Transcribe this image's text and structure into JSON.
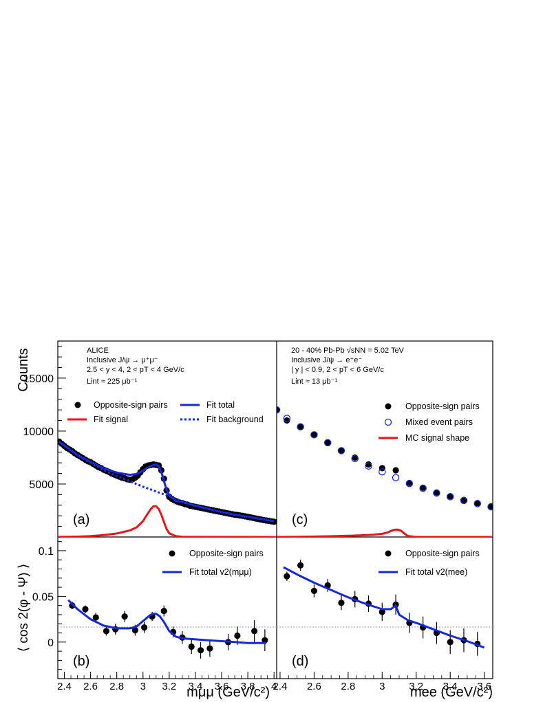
{
  "chart_data": [
    {
      "panel": "(a)",
      "type": "scatter",
      "xlim": [
        2.35,
        4.02
      ],
      "ylim": [
        0,
        18500
      ],
      "ylabel": "Counts",
      "yticks": [
        5000,
        10000,
        15000
      ],
      "annotations": [
        "ALICE",
        "Inclusive J/ψ → μ⁺μ⁻",
        "2.5 < y < 4,  2 < pT < 4 GeV/c",
        "Lint ≈ 225 μb⁻¹"
      ],
      "legend": [
        "Opposite-sign pairs",
        "Fit total",
        "Fit signal",
        "Fit background"
      ],
      "series": [
        {
          "name": "Opposite-sign pairs",
          "style": "marker-filled",
          "color": "#000000",
          "x": [
            2.36,
            2.38,
            2.4,
            2.42,
            2.44,
            2.46,
            2.48,
            2.5,
            2.52,
            2.54,
            2.56,
            2.58,
            2.6,
            2.62,
            2.64,
            2.66,
            2.68,
            2.7,
            2.72,
            2.74,
            2.76,
            2.78,
            2.8,
            2.82,
            2.84,
            2.86,
            2.88,
            2.9,
            2.92,
            2.94,
            2.96,
            2.98,
            3.0,
            3.02,
            3.04,
            3.06,
            3.08,
            3.1,
            3.12,
            3.14,
            3.16,
            3.18,
            3.2,
            3.22,
            3.24,
            3.26,
            3.28,
            3.3,
            3.32,
            3.34,
            3.36,
            3.38,
            3.4,
            3.42,
            3.44,
            3.46,
            3.48,
            3.5,
            3.52,
            3.54,
            3.56,
            3.58,
            3.6,
            3.62,
            3.64,
            3.66,
            3.68,
            3.7,
            3.72,
            3.74,
            3.76,
            3.78,
            3.8,
            3.82,
            3.84,
            3.86,
            3.88,
            3.9,
            3.92,
            3.94,
            3.96,
            3.98,
            4.0
          ],
          "y": [
            9000,
            8800,
            8600,
            8400,
            8250,
            8100,
            7900,
            7750,
            7600,
            7450,
            7300,
            7150,
            7050,
            6900,
            6750,
            6600,
            6500,
            6350,
            6250,
            6150,
            6000,
            5900,
            5800,
            5700,
            5600,
            5550,
            5450,
            5400,
            5450,
            5600,
            5800,
            6100,
            6400,
            6650,
            6750,
            6800,
            6850,
            6800,
            6750,
            6300,
            5500,
            4400,
            3800,
            3600,
            3450,
            3350,
            3250,
            3200,
            3100,
            3050,
            2950,
            2900,
            2850,
            2800,
            2750,
            2700,
            2650,
            2600,
            2550,
            2500,
            2450,
            2400,
            2350,
            2300,
            2250,
            2200,
            2150,
            2100,
            2080,
            2030,
            2000,
            1950,
            1900,
            1850,
            1800,
            1750,
            1700,
            1650,
            1600,
            1560,
            1520,
            1480,
            1440
          ]
        },
        {
          "name": "Fit signal",
          "style": "line",
          "color": "#e8141a",
          "x": [
            2.36,
            2.4,
            2.5,
            2.6,
            2.7,
            2.8,
            2.9,
            2.95,
            3.0,
            3.03,
            3.06,
            3.08,
            3.1,
            3.12,
            3.14,
            3.16,
            3.18,
            3.2,
            3.25,
            3.3,
            3.4,
            4.0
          ],
          "y": [
            5,
            10,
            30,
            80,
            180,
            330,
            620,
            900,
            1500,
            2100,
            2650,
            2900,
            2900,
            2650,
            2100,
            1400,
            750,
            350,
            80,
            20,
            5,
            0
          ]
        },
        {
          "name": "Fit background",
          "style": "dotted",
          "color": "#1428e0",
          "x": [
            2.36,
            2.5,
            2.6,
            2.7,
            2.8,
            2.9,
            3.0,
            3.1,
            3.2,
            3.3,
            3.4,
            3.5,
            3.6,
            3.7,
            3.8,
            3.9,
            4.0
          ],
          "y": [
            9000,
            7700,
            7000,
            6300,
            5750,
            5250,
            4750,
            4300,
            3850,
            3350,
            2950,
            2650,
            2350,
            2100,
            1900,
            1700,
            1500
          ]
        },
        {
          "name": "Fit total",
          "style": "line",
          "color": "#1428e0",
          "x": [
            2.36,
            2.5,
            2.6,
            2.7,
            2.8,
            2.9,
            2.95,
            3.0,
            3.03,
            3.06,
            3.08,
            3.1,
            3.12,
            3.14,
            3.16,
            3.18,
            3.2,
            3.25,
            3.3,
            3.4,
            3.5,
            3.6,
            3.7,
            3.8,
            3.9,
            4.0
          ],
          "y": [
            9000,
            7730,
            7080,
            6480,
            6080,
            5870,
            5950,
            6250,
            6500,
            6700,
            6800,
            6850,
            6700,
            6150,
            5300,
            4450,
            3950,
            3400,
            3300,
            2950,
            2650,
            2350,
            2100,
            1900,
            1700,
            1500
          ]
        }
      ]
    },
    {
      "panel": "(b)",
      "type": "scatter",
      "xlim": [
        2.35,
        4.02
      ],
      "ylim": [
        -0.04,
        0.115
      ],
      "xlabel": "mμμ (GeV/c²)",
      "ylabel": "⟨ cos 2(φ - Ψ) ⟩",
      "xticks": [
        2.4,
        2.6,
        2.8,
        3,
        3.2,
        3.4,
        3.6,
        3.8,
        4
      ],
      "yticks": [
        0,
        0.05,
        0.1
      ],
      "legend": [
        "Opposite-sign pairs",
        "Fit total v2(mμμ)"
      ],
      "series": [
        {
          "name": "Opposite-sign pairs",
          "style": "marker-filled",
          "color": "#000000",
          "x": [
            2.46,
            2.56,
            2.64,
            2.72,
            2.79,
            2.86,
            2.94,
            3.01,
            3.07,
            3.16,
            3.23,
            3.3,
            3.37,
            3.44,
            3.51,
            3.65,
            3.72,
            3.85,
            3.93
          ],
          "y": [
            0.04,
            0.036,
            0.027,
            0.012,
            0.014,
            0.028,
            0.013,
            0.016,
            0.028,
            0.034,
            0.011,
            0.005,
            -0.005,
            -0.009,
            -0.007,
            0.0,
            0.007,
            0.012,
            0.002
          ],
          "err": [
            0.004,
            0.004,
            0.005,
            0.005,
            0.006,
            0.006,
            0.006,
            0.006,
            0.005,
            0.006,
            0.006,
            0.007,
            0.008,
            0.009,
            0.009,
            0.009,
            0.01,
            0.012,
            0.012
          ]
        },
        {
          "name": "Fit total v2(mμμ)",
          "style": "line",
          "color": "#1428e0",
          "x": [
            2.43,
            2.5,
            2.6,
            2.7,
            2.8,
            2.9,
            2.95,
            3.0,
            3.05,
            3.08,
            3.1,
            3.13,
            3.16,
            3.2,
            3.25,
            3.3,
            3.4,
            3.5,
            3.6,
            3.7,
            3.8,
            3.94
          ],
          "y": [
            0.046,
            0.036,
            0.025,
            0.018,
            0.015,
            0.015,
            0.017,
            0.023,
            0.029,
            0.031,
            0.031,
            0.028,
            0.022,
            0.012,
            0.006,
            0.004,
            0.003,
            0.002,
            0.001,
            0.0,
            -0.001,
            -0.001
          ]
        }
      ]
    },
    {
      "panel": "(c)",
      "type": "scatter",
      "xlim": [
        2.38,
        3.65
      ],
      "ylim": [
        0,
        18500
      ],
      "annotations": [
        "20 - 40% Pb-Pb  √sNN = 5.02 TeV",
        "Inclusive J/ψ → e⁺e⁻",
        "| y | < 0.9,  2 < pT < 6 GeV/c",
        "Lint ≈ 13 μb⁻¹"
      ],
      "legend": [
        "Opposite-sign pairs",
        "Mixed event pairs",
        "MC signal shape"
      ],
      "series": [
        {
          "name": "Opposite-sign pairs",
          "style": "marker-filled",
          "color": "#000000",
          "x": [
            2.38,
            2.44,
            2.52,
            2.6,
            2.68,
            2.76,
            2.84,
            2.92,
            3.0,
            3.08,
            3.16,
            3.24,
            3.32,
            3.4,
            3.48,
            3.56,
            3.64
          ],
          "y": [
            12000,
            11000,
            10400,
            9650,
            8900,
            8150,
            7500,
            6850,
            6500,
            6300,
            5100,
            4650,
            4200,
            3850,
            3500,
            3200,
            2900
          ]
        },
        {
          "name": "Mixed event pairs",
          "style": "marker-open",
          "color": "#1428e0",
          "x": [
            2.38,
            2.44,
            2.52,
            2.6,
            2.68,
            2.76,
            2.84,
            2.92,
            3.0,
            3.08,
            3.16,
            3.24,
            3.32,
            3.4,
            3.48,
            3.56,
            3.64
          ],
          "y": [
            12000,
            11200,
            10400,
            9650,
            8900,
            8150,
            7400,
            6700,
            6150,
            5600,
            5050,
            4600,
            4150,
            3800,
            3450,
            3150,
            2850
          ]
        },
        {
          "name": "MC signal shape",
          "style": "line",
          "color": "#e8141a",
          "x": [
            2.38,
            2.5,
            2.6,
            2.7,
            2.8,
            2.9,
            2.95,
            3.0,
            3.03,
            3.05,
            3.07,
            3.09,
            3.11,
            3.13,
            3.15,
            3.2,
            3.65
          ],
          "y": [
            0,
            20,
            40,
            70,
            110,
            170,
            220,
            300,
            420,
            560,
            680,
            700,
            600,
            340,
            100,
            0,
            0
          ]
        }
      ]
    },
    {
      "panel": "(d)",
      "type": "scatter",
      "xlim": [
        2.38,
        3.65
      ],
      "ylim": [
        -0.04,
        0.115
      ],
      "xlabel": "mee (GeV/c²)",
      "xticks": [
        2.4,
        2.6,
        2.8,
        3,
        3.2,
        3.4,
        3.6
      ],
      "legend": [
        "Opposite-sign pairs",
        "Fit total v2(mee)"
      ],
      "series": [
        {
          "name": "Opposite-sign pairs",
          "style": "marker-filled",
          "color": "#000000",
          "x": [
            2.44,
            2.52,
            2.6,
            2.68,
            2.76,
            2.84,
            2.92,
            3.0,
            3.08,
            3.16,
            3.24,
            3.32,
            3.4,
            3.48,
            3.56
          ],
          "y": [
            0.072,
            0.084,
            0.056,
            0.062,
            0.043,
            0.047,
            0.042,
            0.033,
            0.041,
            0.021,
            0.016,
            0.01,
            0.0,
            0.002,
            -0.002
          ],
          "err": [
            0.005,
            0.006,
            0.007,
            0.007,
            0.008,
            0.009,
            0.009,
            0.01,
            0.011,
            0.011,
            0.012,
            0.012,
            0.013,
            0.013,
            0.013
          ]
        },
        {
          "name": "Fit total v2(mee)",
          "style": "line",
          "color": "#1428e0",
          "x": [
            2.42,
            2.5,
            2.6,
            2.7,
            2.8,
            2.9,
            3.0,
            3.05,
            3.08,
            3.1,
            3.15,
            3.2,
            3.3,
            3.4,
            3.5,
            3.6
          ],
          "y": [
            0.082,
            0.074,
            0.065,
            0.057,
            0.049,
            0.042,
            0.036,
            0.036,
            0.04,
            0.03,
            0.024,
            0.021,
            0.014,
            0.007,
            0.001,
            -0.006
          ]
        }
      ]
    }
  ]
}
